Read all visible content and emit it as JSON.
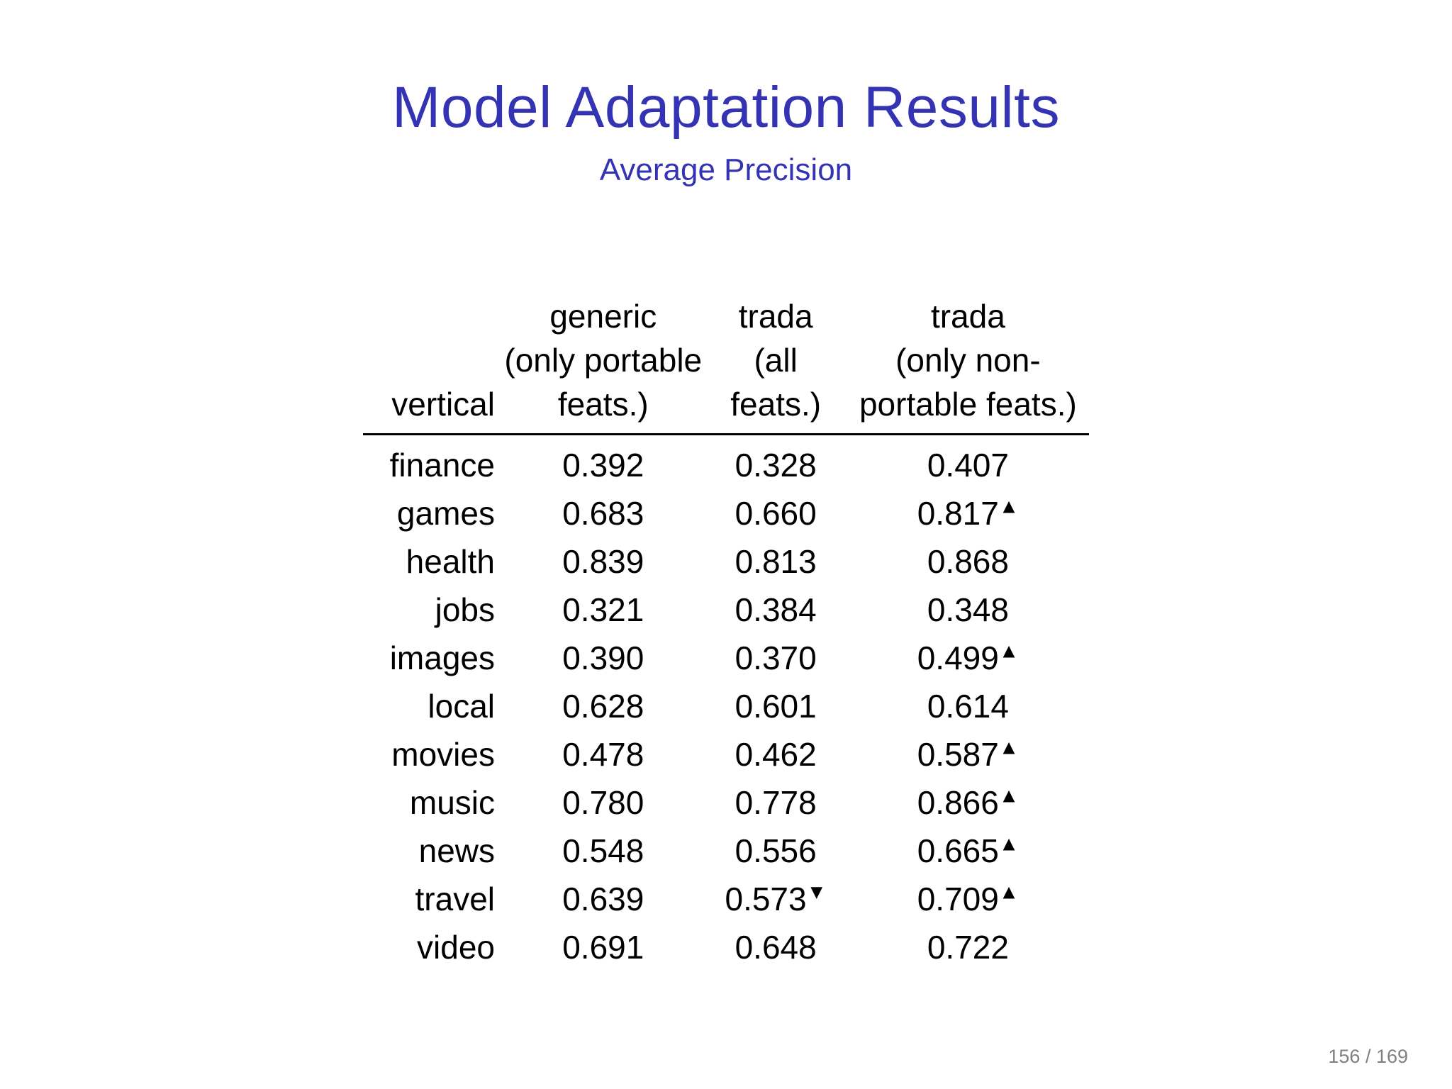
{
  "slide": {
    "title": "Model Adaptation Results",
    "subtitle": "Average Precision",
    "page_number": "156 / 169"
  },
  "colors": {
    "title_accent": "#3333b3",
    "text": "#000000",
    "page_number": "#7f7f7f",
    "background": "#ffffff"
  },
  "table": {
    "header": {
      "vertical": "vertical",
      "generic_top": "generic",
      "generic_bottom": "(only portable feats.)",
      "trada_all_top": "trada",
      "trada_all_bottom": "(all feats.)",
      "trada_np_top": "trada",
      "trada_np_bottom": "(only non-portable feats.)"
    },
    "marker_glyphs": {
      "up": "▲",
      "down": "▼"
    },
    "rows": [
      {
        "vertical": "finance",
        "generic": "0.392",
        "trada_all": "0.328",
        "trada_all_marker": "",
        "trada_np": "0.407",
        "trada_np_marker": ""
      },
      {
        "vertical": "games",
        "generic": "0.683",
        "trada_all": "0.660",
        "trada_all_marker": "",
        "trada_np": "0.817",
        "trada_np_marker": "▲"
      },
      {
        "vertical": "health",
        "generic": "0.839",
        "trada_all": "0.813",
        "trada_all_marker": "",
        "trada_np": "0.868",
        "trada_np_marker": ""
      },
      {
        "vertical": "jobs",
        "generic": "0.321",
        "trada_all": "0.384",
        "trada_all_marker": "",
        "trada_np": "0.348",
        "trada_np_marker": ""
      },
      {
        "vertical": "images",
        "generic": "0.390",
        "trada_all": "0.370",
        "trada_all_marker": "",
        "trada_np": "0.499",
        "trada_np_marker": "▲"
      },
      {
        "vertical": "local",
        "generic": "0.628",
        "trada_all": "0.601",
        "trada_all_marker": "",
        "trada_np": "0.614",
        "trada_np_marker": ""
      },
      {
        "vertical": "movies",
        "generic": "0.478",
        "trada_all": "0.462",
        "trada_all_marker": "",
        "trada_np": "0.587",
        "trada_np_marker": "▲"
      },
      {
        "vertical": "music",
        "generic": "0.780",
        "trada_all": "0.778",
        "trada_all_marker": "",
        "trada_np": "0.866",
        "trada_np_marker": "▲"
      },
      {
        "vertical": "news",
        "generic": "0.548",
        "trada_all": "0.556",
        "trada_all_marker": "",
        "trada_np": "0.665",
        "trada_np_marker": "▲"
      },
      {
        "vertical": "travel",
        "generic": "0.639",
        "trada_all": "0.573",
        "trada_all_marker": "▼",
        "trada_np": "0.709",
        "trada_np_marker": "▲"
      },
      {
        "vertical": "video",
        "generic": "0.691",
        "trada_all": "0.648",
        "trada_all_marker": "",
        "trada_np": "0.722",
        "trada_np_marker": ""
      }
    ]
  }
}
